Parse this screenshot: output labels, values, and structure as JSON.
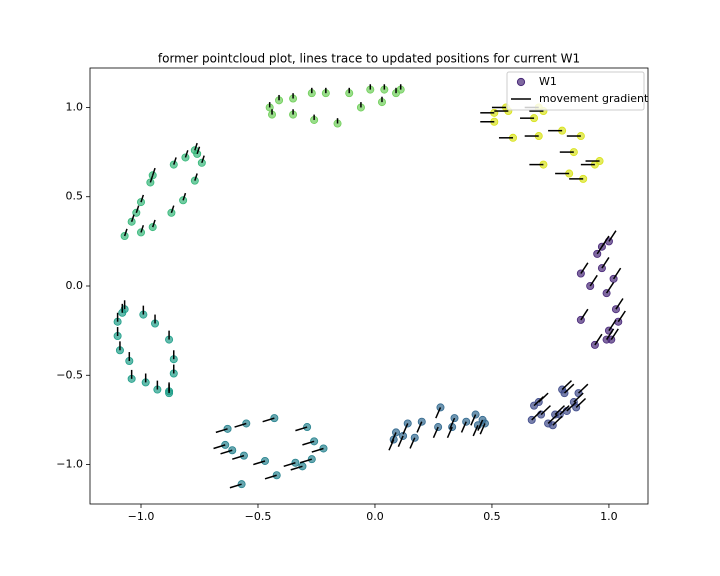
{
  "chart_data": {
    "type": "scatter-movement",
    "title": "former pointcloud plot, lines trace to updated positions for current W1",
    "xlim": [
      -1.218,
      1.167
    ],
    "ylim": [
      -1.221,
      1.221
    ],
    "xticks": [
      {
        "value": -1.0,
        "label": "−1.0"
      },
      {
        "value": -0.5,
        "label": "−0.5"
      },
      {
        "value": 0.0,
        "label": "0.0"
      },
      {
        "value": 0.5,
        "label": "0.5"
      },
      {
        "value": 1.0,
        "label": "1.0"
      }
    ],
    "yticks": [
      {
        "value": -1.0,
        "label": "−1.0"
      },
      {
        "value": -0.5,
        "label": "−0.5"
      },
      {
        "value": 0.0,
        "label": "0.0"
      },
      {
        "value": 0.5,
        "label": "0.5"
      },
      {
        "value": 1.0,
        "label": "1.0"
      }
    ],
    "line_color": "#000000",
    "legend": {
      "loc": "upper right",
      "entries": [
        {
          "label": "W1",
          "marker": "circle",
          "color": "#482878"
        },
        {
          "label": "movement gradient",
          "marker": "line",
          "color": "#000000"
        }
      ]
    },
    "groups": [
      {
        "color": "#482878",
        "x": [
          1.0,
          0.97,
          0.95,
          0.88,
          1.02,
          0.97,
          0.92,
          0.99,
          1.03,
          1.04,
          0.88,
          1.0,
          0.99,
          1.01,
          0.94
        ],
        "y": [
          0.25,
          0.22,
          0.18,
          0.07,
          0.04,
          0.1,
          0.0,
          -0.04,
          -0.13,
          -0.2,
          -0.19,
          -0.25,
          -0.3,
          -0.3,
          -0.33
        ],
        "x_end": [
          1.03,
          1.0,
          0.98,
          0.91,
          1.05,
          1.0,
          0.95,
          1.02,
          1.06,
          1.07,
          0.91,
          1.03,
          1.02,
          1.04,
          0.97
        ],
        "y_end": [
          0.31,
          0.28,
          0.24,
          0.13,
          0.1,
          0.16,
          0.06,
          0.02,
          -0.07,
          -0.14,
          -0.13,
          -0.19,
          -0.24,
          -0.24,
          -0.27
        ]
      },
      {
        "color": "#3e4a89",
        "x": [
          0.8,
          0.81,
          0.87,
          0.7,
          0.68,
          0.71,
          0.67,
          0.74,
          0.76,
          0.77,
          0.79,
          0.82,
          0.86,
          0.85
        ],
        "y": [
          -0.58,
          -0.6,
          -0.6,
          -0.65,
          -0.67,
          -0.72,
          -0.75,
          -0.77,
          -0.78,
          -0.72,
          -0.72,
          -0.7,
          -0.68,
          -0.65
        ],
        "x_end": [
          0.84,
          0.85,
          0.91,
          0.74,
          0.72,
          0.75,
          0.71,
          0.78,
          0.8,
          0.81,
          0.83,
          0.86,
          0.9,
          0.89
        ],
        "y_end": [
          -0.53,
          -0.55,
          -0.55,
          -0.6,
          -0.62,
          -0.67,
          -0.7,
          -0.72,
          -0.73,
          -0.67,
          -0.67,
          -0.65,
          -0.63,
          -0.6
        ]
      },
      {
        "color": "#31688e",
        "x": [
          0.28,
          0.43,
          0.34,
          0.2,
          0.14,
          0.39,
          0.46,
          0.47,
          0.44,
          0.33,
          0.09,
          0.12,
          0.08,
          0.17,
          0.27
        ],
        "y": [
          -0.68,
          -0.72,
          -0.74,
          -0.76,
          -0.77,
          -0.76,
          -0.75,
          -0.77,
          -0.78,
          -0.79,
          -0.82,
          -0.84,
          -0.86,
          -0.85,
          -0.79
        ],
        "x_end": [
          0.26,
          0.41,
          0.32,
          0.18,
          0.12,
          0.37,
          0.44,
          0.45,
          0.42,
          0.31,
          0.07,
          0.1,
          0.06,
          0.15,
          0.25
        ],
        "y_end": [
          -0.74,
          -0.78,
          -0.8,
          -0.82,
          -0.83,
          -0.82,
          -0.81,
          -0.83,
          -0.84,
          -0.85,
          -0.88,
          -0.9,
          -0.92,
          -0.91,
          -0.85
        ]
      },
      {
        "color": "#26828e",
        "x": [
          -0.43,
          -0.55,
          -0.29,
          -0.63,
          -0.26,
          -0.64,
          -0.61,
          -0.22,
          -0.56,
          -0.47,
          -0.34,
          -0.31,
          -0.27,
          -0.42,
          -0.57
        ],
        "y": [
          -0.74,
          -0.77,
          -0.79,
          -0.8,
          -0.87,
          -0.89,
          -0.92,
          -0.91,
          -0.95,
          -0.98,
          -0.99,
          -1.01,
          -0.97,
          -1.06,
          -1.11
        ],
        "x_end": [
          -0.48,
          -0.6,
          -0.34,
          -0.68,
          -0.31,
          -0.69,
          -0.66,
          -0.27,
          -0.61,
          -0.52,
          -0.39,
          -0.36,
          -0.32,
          -0.47,
          -0.62
        ],
        "y_end": [
          -0.76,
          -0.79,
          -0.81,
          -0.82,
          -0.89,
          -0.91,
          -0.94,
          -0.93,
          -0.97,
          -1.0,
          -1.01,
          -1.03,
          -0.99,
          -1.08,
          -1.13
        ]
      },
      {
        "color": "#1f9e89",
        "x": [
          -1.07,
          -1.08,
          -0.99,
          -1.1,
          -0.94,
          -1.1,
          -0.88,
          -1.09,
          -1.05,
          -0.86,
          -0.86,
          -1.04,
          -0.98,
          -0.93,
          -0.88,
          -0.88
        ],
        "y": [
          -0.13,
          -0.15,
          -0.16,
          -0.2,
          -0.21,
          -0.28,
          -0.3,
          -0.36,
          -0.42,
          -0.41,
          -0.49,
          -0.52,
          -0.54,
          -0.58,
          -0.59,
          -0.6
        ],
        "x_end": [
          -1.07,
          -1.08,
          -0.99,
          -1.1,
          -0.94,
          -1.1,
          -0.88,
          -1.09,
          -1.05,
          -0.86,
          -0.86,
          -1.04,
          -0.98,
          -0.93,
          -0.88,
          -0.88
        ],
        "y_end": [
          -0.08,
          -0.1,
          -0.11,
          -0.15,
          -0.16,
          -0.23,
          -0.25,
          -0.31,
          -0.37,
          -0.36,
          -0.44,
          -0.47,
          -0.49,
          -0.53,
          -0.54,
          -0.55
        ]
      },
      {
        "color": "#35b779",
        "x": [
          -0.77,
          -0.76,
          -0.74,
          -0.81,
          -0.86,
          -0.95,
          -0.96,
          -0.77,
          -0.82,
          -1.0,
          -1.02,
          -0.87,
          -1.04,
          -0.95,
          -1.0,
          -1.07
        ],
        "y": [
          0.76,
          0.74,
          0.69,
          0.72,
          0.68,
          0.62,
          0.58,
          0.59,
          0.48,
          0.47,
          0.41,
          0.41,
          0.36,
          0.33,
          0.3,
          0.28
        ],
        "x_end": [
          -0.76,
          -0.75,
          -0.73,
          -0.8,
          -0.85,
          -0.94,
          -0.95,
          -0.76,
          -0.81,
          -0.99,
          -1.01,
          -0.86,
          -1.03,
          -0.94,
          -0.99,
          -1.06
        ],
        "y_end": [
          0.8,
          0.78,
          0.73,
          0.76,
          0.72,
          0.66,
          0.62,
          0.63,
          0.52,
          0.51,
          0.45,
          0.45,
          0.4,
          0.37,
          0.34,
          0.32
        ]
      },
      {
        "color": "#6ece58",
        "x": [
          0.04,
          0.11,
          -0.02,
          0.09,
          -0.11,
          -0.21,
          -0.27,
          -0.35,
          -0.41,
          -0.45,
          0.03,
          -0.06,
          -0.44,
          -0.35,
          -0.26,
          -0.16
        ],
        "y": [
          1.1,
          1.1,
          1.1,
          1.08,
          1.08,
          1.08,
          1.08,
          1.05,
          1.04,
          1.0,
          1.03,
          1.0,
          0.96,
          0.96,
          0.93,
          0.91
        ],
        "x_end": [
          0.04,
          0.11,
          -0.02,
          0.09,
          -0.11,
          -0.21,
          -0.27,
          -0.35,
          -0.41,
          -0.45,
          0.03,
          -0.06,
          -0.44,
          -0.35,
          -0.26,
          -0.16
        ],
        "y_end": [
          1.13,
          1.13,
          1.13,
          1.11,
          1.11,
          1.11,
          1.11,
          1.08,
          1.07,
          1.03,
          1.06,
          1.03,
          0.99,
          0.99,
          0.96,
          0.94
        ]
      },
      {
        "color": "#d8e219",
        "x": [
          0.56,
          0.57,
          0.7,
          0.72,
          0.51,
          0.68,
          0.51,
          0.8,
          0.88,
          0.59,
          0.7,
          0.85,
          0.96,
          0.94,
          0.72,
          0.83,
          0.89
        ],
        "y": [
          1.0,
          0.98,
          1.0,
          0.98,
          0.97,
          0.94,
          0.92,
          0.87,
          0.84,
          0.83,
          0.84,
          0.75,
          0.7,
          0.68,
          0.68,
          0.63,
          0.6
        ],
        "x_end": [
          0.5,
          0.51,
          0.64,
          0.66,
          0.45,
          0.62,
          0.45,
          0.74,
          0.82,
          0.53,
          0.64,
          0.79,
          0.9,
          0.88,
          0.66,
          0.77,
          0.83
        ],
        "y_end": [
          1.0,
          0.98,
          1.0,
          0.98,
          0.97,
          0.94,
          0.92,
          0.87,
          0.84,
          0.83,
          0.84,
          0.75,
          0.7,
          0.68,
          0.68,
          0.63,
          0.6
        ]
      }
    ]
  }
}
